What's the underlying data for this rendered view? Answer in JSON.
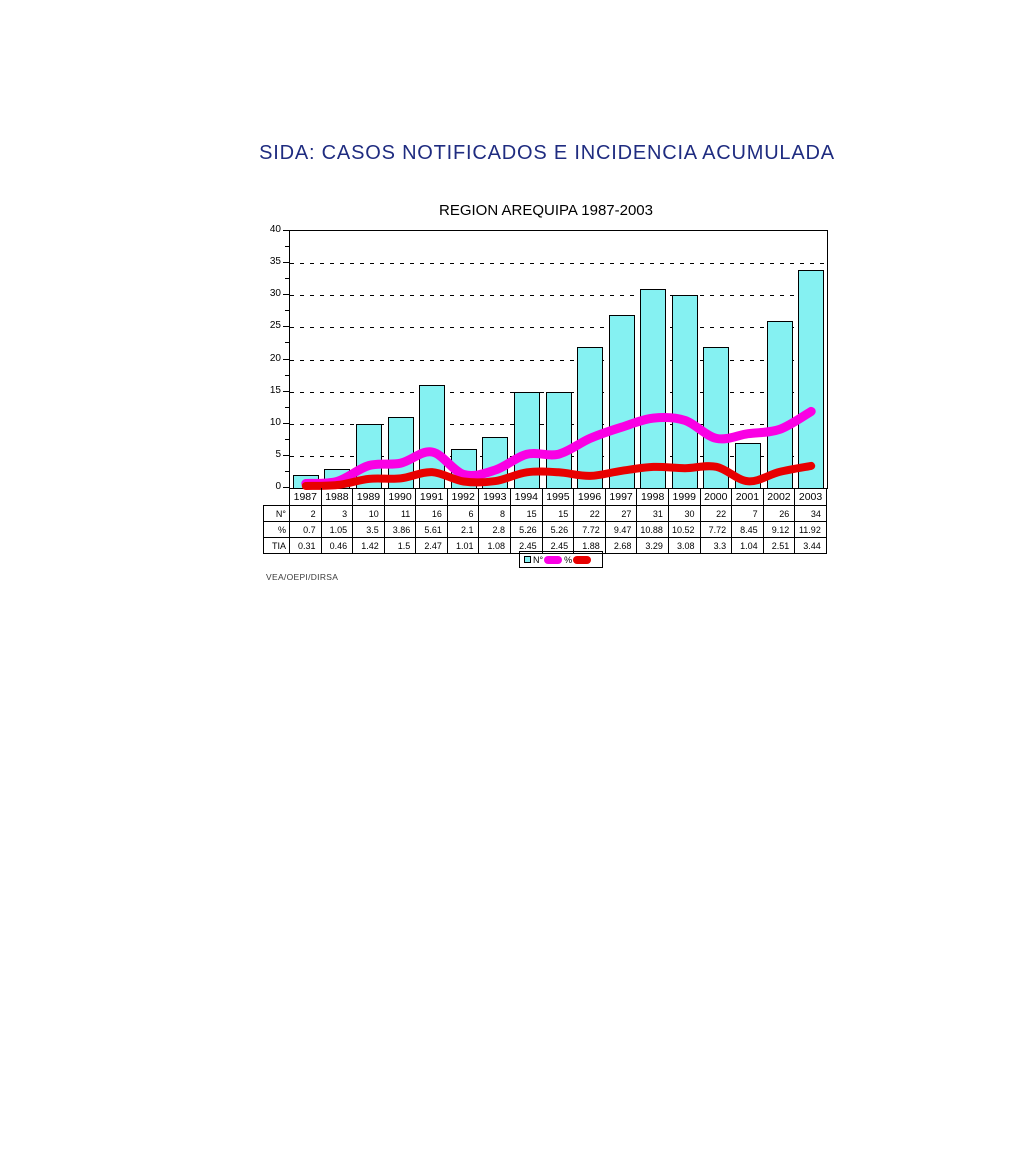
{
  "page": {
    "title": "SIDA: CASOS NOTIFICADOS E INCIDENCIA ACUMULADA",
    "source": "VEA/OEPI/DIRSA"
  },
  "chart_data": {
    "type": "bar+line",
    "title": "REGION AREQUIPA 1987-2003",
    "categories": [
      "1987",
      "1988",
      "1989",
      "1990",
      "1991",
      "1992",
      "1993",
      "1994",
      "1995",
      "1996",
      "1997",
      "1998",
      "1999",
      "2000",
      "2001",
      "2002",
      "2003"
    ],
    "series": [
      {
        "name": "N°",
        "chart": "bar",
        "color": "#85F1F2",
        "values": [
          2,
          3,
          10,
          11,
          16,
          6,
          8,
          15,
          15,
          22,
          27,
          31,
          30,
          22,
          7,
          26,
          34
        ]
      },
      {
        "name": "%",
        "chart": "line",
        "color": "#FA00E4",
        "values": [
          0.7,
          1.05,
          3.5,
          3.86,
          5.61,
          2.1,
          2.8,
          5.26,
          5.26,
          7.72,
          9.47,
          10.88,
          10.52,
          7.72,
          8.45,
          9.12,
          11.92
        ]
      },
      {
        "name": "TIA",
        "chart": "line",
        "color": "#E80000",
        "values": [
          0.31,
          0.46,
          1.42,
          1.5,
          2.47,
          1.01,
          1.08,
          2.45,
          2.45,
          1.88,
          2.68,
          3.29,
          3.08,
          3.3,
          1.04,
          2.51,
          3.44
        ]
      }
    ],
    "ylim": [
      0,
      40
    ],
    "ytick_step": 5,
    "yticks": [
      0,
      5,
      10,
      15,
      20,
      25,
      30,
      35,
      40
    ],
    "grid": "horizontal-dashed",
    "table_row_headers": [
      "N°",
      "%",
      "TIA"
    ],
    "legend_position": "bottom-center",
    "legend": [
      {
        "swatch": "bar-square",
        "label": "N°"
      },
      {
        "swatch": "line-pill",
        "label": "%"
      },
      {
        "swatch": "line-pill",
        "label": ""
      }
    ]
  },
  "colors": {
    "title_text": "#1F2C80",
    "bar_fill": "#85F1F2",
    "bar_border": "#000000",
    "line_pct": "#FA00E4",
    "line_tia": "#E80000",
    "grid": "#000000"
  }
}
